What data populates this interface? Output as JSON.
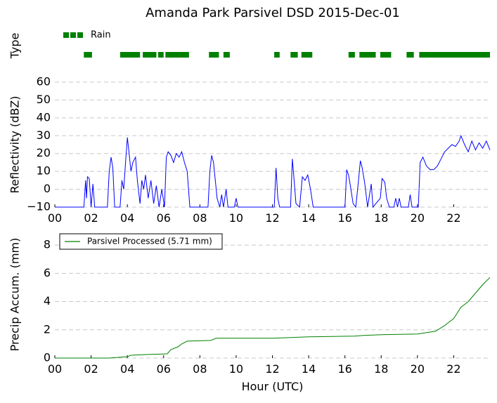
{
  "chart_data": [
    {
      "type": "timeline",
      "title": "Amanda Park Parsivel DSD 2015-Dec-01",
      "ylabel": "Type",
      "xlim": [
        0,
        24
      ],
      "series": [
        {
          "name": "Rain",
          "color": "#008000",
          "intervals": [
            [
              1.6,
              2.05
            ],
            [
              3.6,
              4.7
            ],
            [
              4.85,
              5.6
            ],
            [
              5.7,
              6.0
            ],
            [
              6.1,
              7.4
            ],
            [
              8.5,
              9.05
            ],
            [
              9.3,
              9.65
            ],
            [
              12.1,
              12.4
            ],
            [
              13.0,
              13.4
            ],
            [
              13.6,
              14.2
            ],
            [
              16.2,
              16.55
            ],
            [
              16.8,
              17.7
            ],
            [
              17.95,
              18.55
            ],
            [
              19.4,
              19.8
            ],
            [
              20.1,
              24.0
            ]
          ]
        }
      ]
    },
    {
      "type": "line",
      "ylabel": "Reflectivity (dBZ)",
      "xlim": [
        0,
        24
      ],
      "ylim": [
        -10,
        60
      ],
      "grid": true,
      "yticks": [
        {
          "value": -10,
          "label": "−10"
        },
        0,
        10,
        20,
        30,
        40,
        50,
        60
      ],
      "xticks": [
        {
          "value": 0,
          "label": "00"
        },
        {
          "value": 2,
          "label": "02"
        },
        {
          "value": 4,
          "label": "04"
        },
        {
          "value": 6,
          "label": "06"
        },
        {
          "value": 8,
          "label": "08"
        },
        10,
        12,
        14,
        16,
        18,
        20,
        22
      ],
      "x": [
        0,
        1.6,
        1.7,
        1.75,
        1.8,
        1.9,
        2.0,
        2.1,
        2.2,
        2.9,
        3.0,
        3.1,
        3.2,
        3.3,
        3.6,
        3.7,
        3.8,
        3.9,
        4.0,
        4.1,
        4.2,
        4.3,
        4.45,
        4.55,
        4.7,
        4.8,
        4.9,
        5.0,
        5.15,
        5.3,
        5.45,
        5.6,
        5.75,
        5.9,
        6.05,
        6.15,
        6.25,
        6.4,
        6.55,
        6.7,
        6.85,
        7.0,
        7.15,
        7.3,
        7.45,
        8.45,
        8.55,
        8.65,
        8.75,
        8.85,
        8.95,
        9.1,
        9.2,
        9.3,
        9.45,
        9.55,
        9.9,
        10.0,
        10.1,
        12.1,
        12.2,
        12.3,
        12.4,
        13.0,
        13.1,
        13.2,
        13.3,
        13.5,
        13.65,
        13.8,
        13.95,
        14.1,
        14.25,
        16.0,
        16.1,
        16.2,
        16.3,
        16.45,
        16.6,
        16.75,
        16.85,
        16.95,
        17.1,
        17.25,
        17.45,
        17.55,
        17.95,
        18.05,
        18.2,
        18.3,
        18.45,
        18.7,
        18.8,
        18.9,
        19.0,
        19.1,
        19.5,
        19.6,
        19.7,
        20.05,
        20.15,
        20.3,
        20.5,
        20.7,
        20.9,
        21.1,
        21.3,
        21.5,
        21.7,
        21.9,
        22.1,
        22.3,
        22.4,
        22.6,
        22.8,
        23.0,
        23.2,
        23.4,
        23.6,
        23.8,
        24.0
      ],
      "series": [
        {
          "color": "#0000ff",
          "values": [
            -10,
            -10,
            5,
            -5,
            7,
            6,
            -10,
            3,
            -10,
            -10,
            10,
            18,
            12,
            -10,
            -10,
            5,
            0,
            15,
            29,
            20,
            10,
            15,
            18,
            5,
            -8,
            5,
            0,
            8,
            -5,
            5,
            -8,
            2,
            -10,
            0,
            -10,
            18,
            21,
            19,
            15,
            20,
            18,
            21,
            15,
            10,
            -10,
            -10,
            10,
            19,
            15,
            5,
            -5,
            -10,
            -3,
            -10,
            0,
            -10,
            -10,
            -5,
            -10,
            -10,
            12,
            -5,
            -10,
            -10,
            17,
            5,
            -8,
            -10,
            7,
            5,
            8,
            0,
            -10,
            -10,
            11,
            8,
            2,
            -8,
            -10,
            5,
            16,
            12,
            3,
            -10,
            3,
            -10,
            -5,
            6,
            4,
            -5,
            -10,
            -10,
            -5,
            -10,
            -5,
            -10,
            -10,
            -3,
            -10,
            -10,
            15,
            18,
            13,
            11,
            11,
            13,
            17,
            21,
            23,
            25,
            24,
            27,
            30,
            25,
            21,
            27,
            22,
            26,
            23,
            27,
            22
          ]
        }
      ]
    },
    {
      "type": "line",
      "ylabel": "Precip Accum. (mm)",
      "xlabel": "Hour (UTC)",
      "xlim": [
        0,
        24
      ],
      "ylim": [
        0,
        9
      ],
      "grid": true,
      "legend": "upper left",
      "yticks": [
        0,
        2,
        4,
        6,
        8
      ],
      "xticks": [
        {
          "value": 0,
          "label": "00"
        },
        {
          "value": 2,
          "label": "02"
        },
        {
          "value": 4,
          "label": "04"
        },
        {
          "value": 6,
          "label": "06"
        },
        {
          "value": 8,
          "label": "08"
        },
        10,
        12,
        14,
        16,
        18,
        20,
        22
      ],
      "x": [
        0,
        3,
        3.5,
        4,
        4.2,
        5,
        6.2,
        6.4,
        6.8,
        7,
        7.3,
        8.6,
        8.9,
        12,
        13,
        14,
        16.5,
        17,
        18,
        20,
        20.5,
        21,
        21.5,
        22,
        22.4,
        22.8,
        23.2,
        23.6,
        24
      ],
      "series": [
        {
          "name": "Parsivel Processed (5.71 mm)",
          "color": "#008000",
          "values": [
            0,
            0,
            0.05,
            0.1,
            0.2,
            0.25,
            0.3,
            0.6,
            0.8,
            1.0,
            1.2,
            1.25,
            1.4,
            1.4,
            1.45,
            1.5,
            1.55,
            1.6,
            1.65,
            1.7,
            1.8,
            1.9,
            2.3,
            2.8,
            3.6,
            4.0,
            4.6,
            5.2,
            5.71
          ]
        }
      ]
    }
  ]
}
